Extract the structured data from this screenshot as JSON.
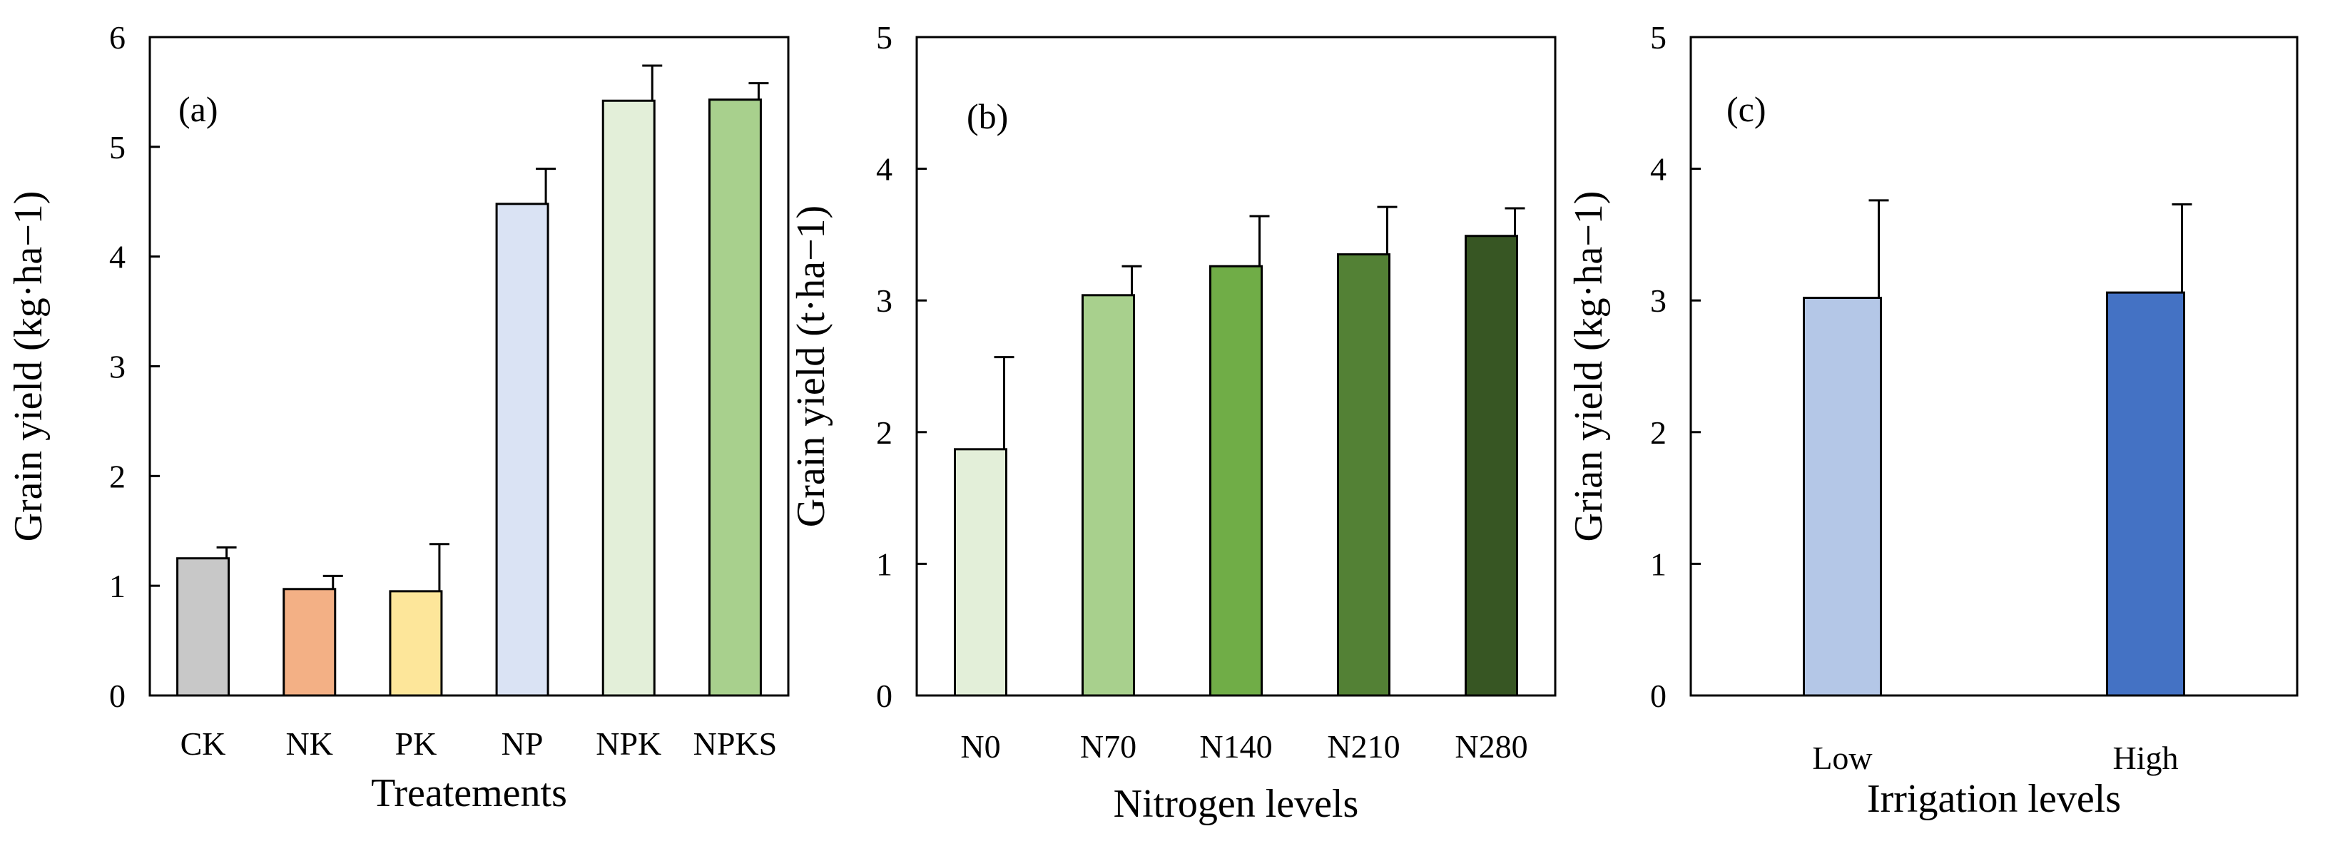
{
  "chart_data": [
    {
      "type": "bar",
      "panel": "(a)",
      "categories": [
        "CK",
        "NK",
        "PK",
        "NP",
        "NPK",
        "NPKS"
      ],
      "values": [
        1.25,
        0.97,
        0.95,
        4.48,
        5.42,
        5.43
      ],
      "errors": [
        0.1,
        0.12,
        0.43,
        0.32,
        0.32,
        0.15
      ],
      "colors": [
        "#c8c8c8",
        "#f3b085",
        "#fde69a",
        "#dae3f4",
        "#e3efd9",
        "#a8d08d"
      ],
      "xlabel": "Treatements",
      "ylabel": "Grain yield (kg·ha−1)",
      "ylim": [
        0,
        6
      ],
      "yticks": [
        "0",
        "1",
        "2",
        "3",
        "4",
        "5",
        "6"
      ]
    },
    {
      "type": "bar",
      "panel": "(b)",
      "categories": [
        "N0",
        "N70",
        "N140",
        "N210",
        "N280"
      ],
      "values": [
        1.87,
        3.04,
        3.26,
        3.35,
        3.49
      ],
      "errors": [
        0.7,
        0.22,
        0.38,
        0.36,
        0.21
      ],
      "colors": [
        "#e3efd9",
        "#a8d08d",
        "#70ad47",
        "#538135",
        "#375623"
      ],
      "xlabel": "Nitrogen levels",
      "ylabel": "Grain yield (t·ha−1)",
      "ylim": [
        0,
        5
      ],
      "yticks": [
        "0",
        "1",
        "2",
        "3",
        "4",
        "5"
      ]
    },
    {
      "type": "bar",
      "panel": "(c)",
      "categories": [
        "Low",
        "High"
      ],
      "values": [
        3.02,
        3.06
      ],
      "errors": [
        0.74,
        0.67
      ],
      "colors": [
        "#b4c7e7",
        "#4472c4"
      ],
      "xlabel": "Irrigation levels",
      "ylabel": "Grian yield (kg·ha−1)",
      "ylim": [
        0,
        5
      ],
      "yticks": [
        "0",
        "1",
        "2",
        "3",
        "4",
        "5"
      ]
    }
  ]
}
